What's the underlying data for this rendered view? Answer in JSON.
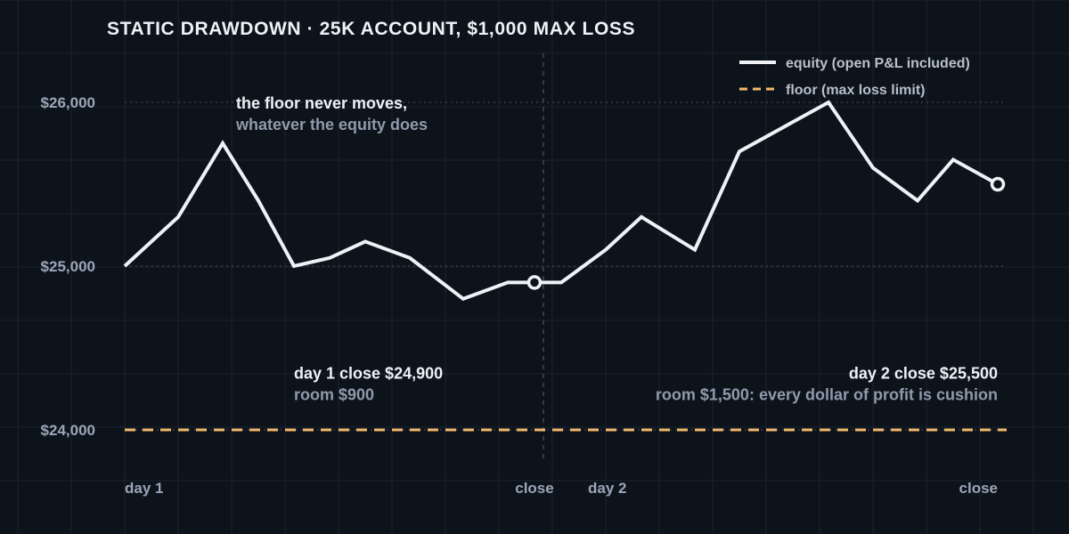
{
  "chart_data": {
    "type": "line",
    "title": "STATIC DRAWDOWN · 25K ACCOUNT, $1,000 MAX LOSS",
    "xlabel": "",
    "ylabel": "",
    "ylim": [
      23600,
      26300
    ],
    "y_ticks": [
      {
        "value": 24000,
        "label": "$24,000"
      },
      {
        "value": 25000,
        "label": "$25,000"
      },
      {
        "value": 26000,
        "label": "$26,000"
      }
    ],
    "x_ticks": [
      {
        "index": 0,
        "label": "day 1",
        "anchor": "start"
      },
      {
        "index": 11.5,
        "label": "close",
        "anchor": "middle"
      },
      {
        "index": 13,
        "label": "day 2",
        "anchor": "start"
      },
      {
        "index": 24.5,
        "label": "close",
        "anchor": "end"
      }
    ],
    "day_boundary_index": 11.5,
    "grid": true,
    "legend_position": "top-right",
    "legend": [
      {
        "label": "equity (open P&L included)",
        "style": "solid",
        "color": "#eef1f6"
      },
      {
        "label": "floor (max loss limit)",
        "style": "dashed",
        "color": "#f0b96b"
      }
    ],
    "series": [
      {
        "name": "equity (open P&L included)",
        "color": "#eef1f6",
        "x": [
          0,
          1.5,
          2.75,
          3.75,
          4.75,
          5.75,
          6.75,
          8,
          9.5,
          10.75,
          11.5,
          12.25,
          13.5,
          14.5,
          16,
          17.25,
          18.5,
          19.75,
          21,
          22.25,
          23.25,
          24.5
        ],
        "values": [
          25000,
          25300,
          25750,
          25400,
          25000,
          25050,
          25150,
          25050,
          24800,
          24900,
          24900,
          24900,
          25100,
          25300,
          25100,
          25700,
          25850,
          26000,
          25600,
          25400,
          25650,
          25500
        ]
      },
      {
        "name": "floor (max loss limit)",
        "color": "#f0b96b",
        "x": [
          0,
          24.75
        ],
        "values": [
          24000,
          24000
        ]
      }
    ],
    "markers": [
      {
        "x": 11.5,
        "value": 24900
      },
      {
        "x": 24.5,
        "value": 25500
      }
    ],
    "annotations": [
      {
        "lines": [
          "the floor never moves,",
          "whatever the equity does"
        ],
        "x": 3.125,
        "value": 26000,
        "anchor": "start"
      },
      {
        "lines": [
          "day 1 close $24,900",
          "room $900"
        ],
        "x": 4.75,
        "value": 24350,
        "anchor": "start"
      },
      {
        "lines": [
          "day 2 close $25,500",
          "room $1,500: every dollar of profit is cushion"
        ],
        "x": 24.5,
        "value": 24350,
        "anchor": "end"
      }
    ]
  },
  "colors": {
    "background": "#0d131b",
    "grid": "#1a232f",
    "equity": "#eef1f6",
    "floor": "#f0b96b",
    "muted_text": "#9aa6b8"
  }
}
